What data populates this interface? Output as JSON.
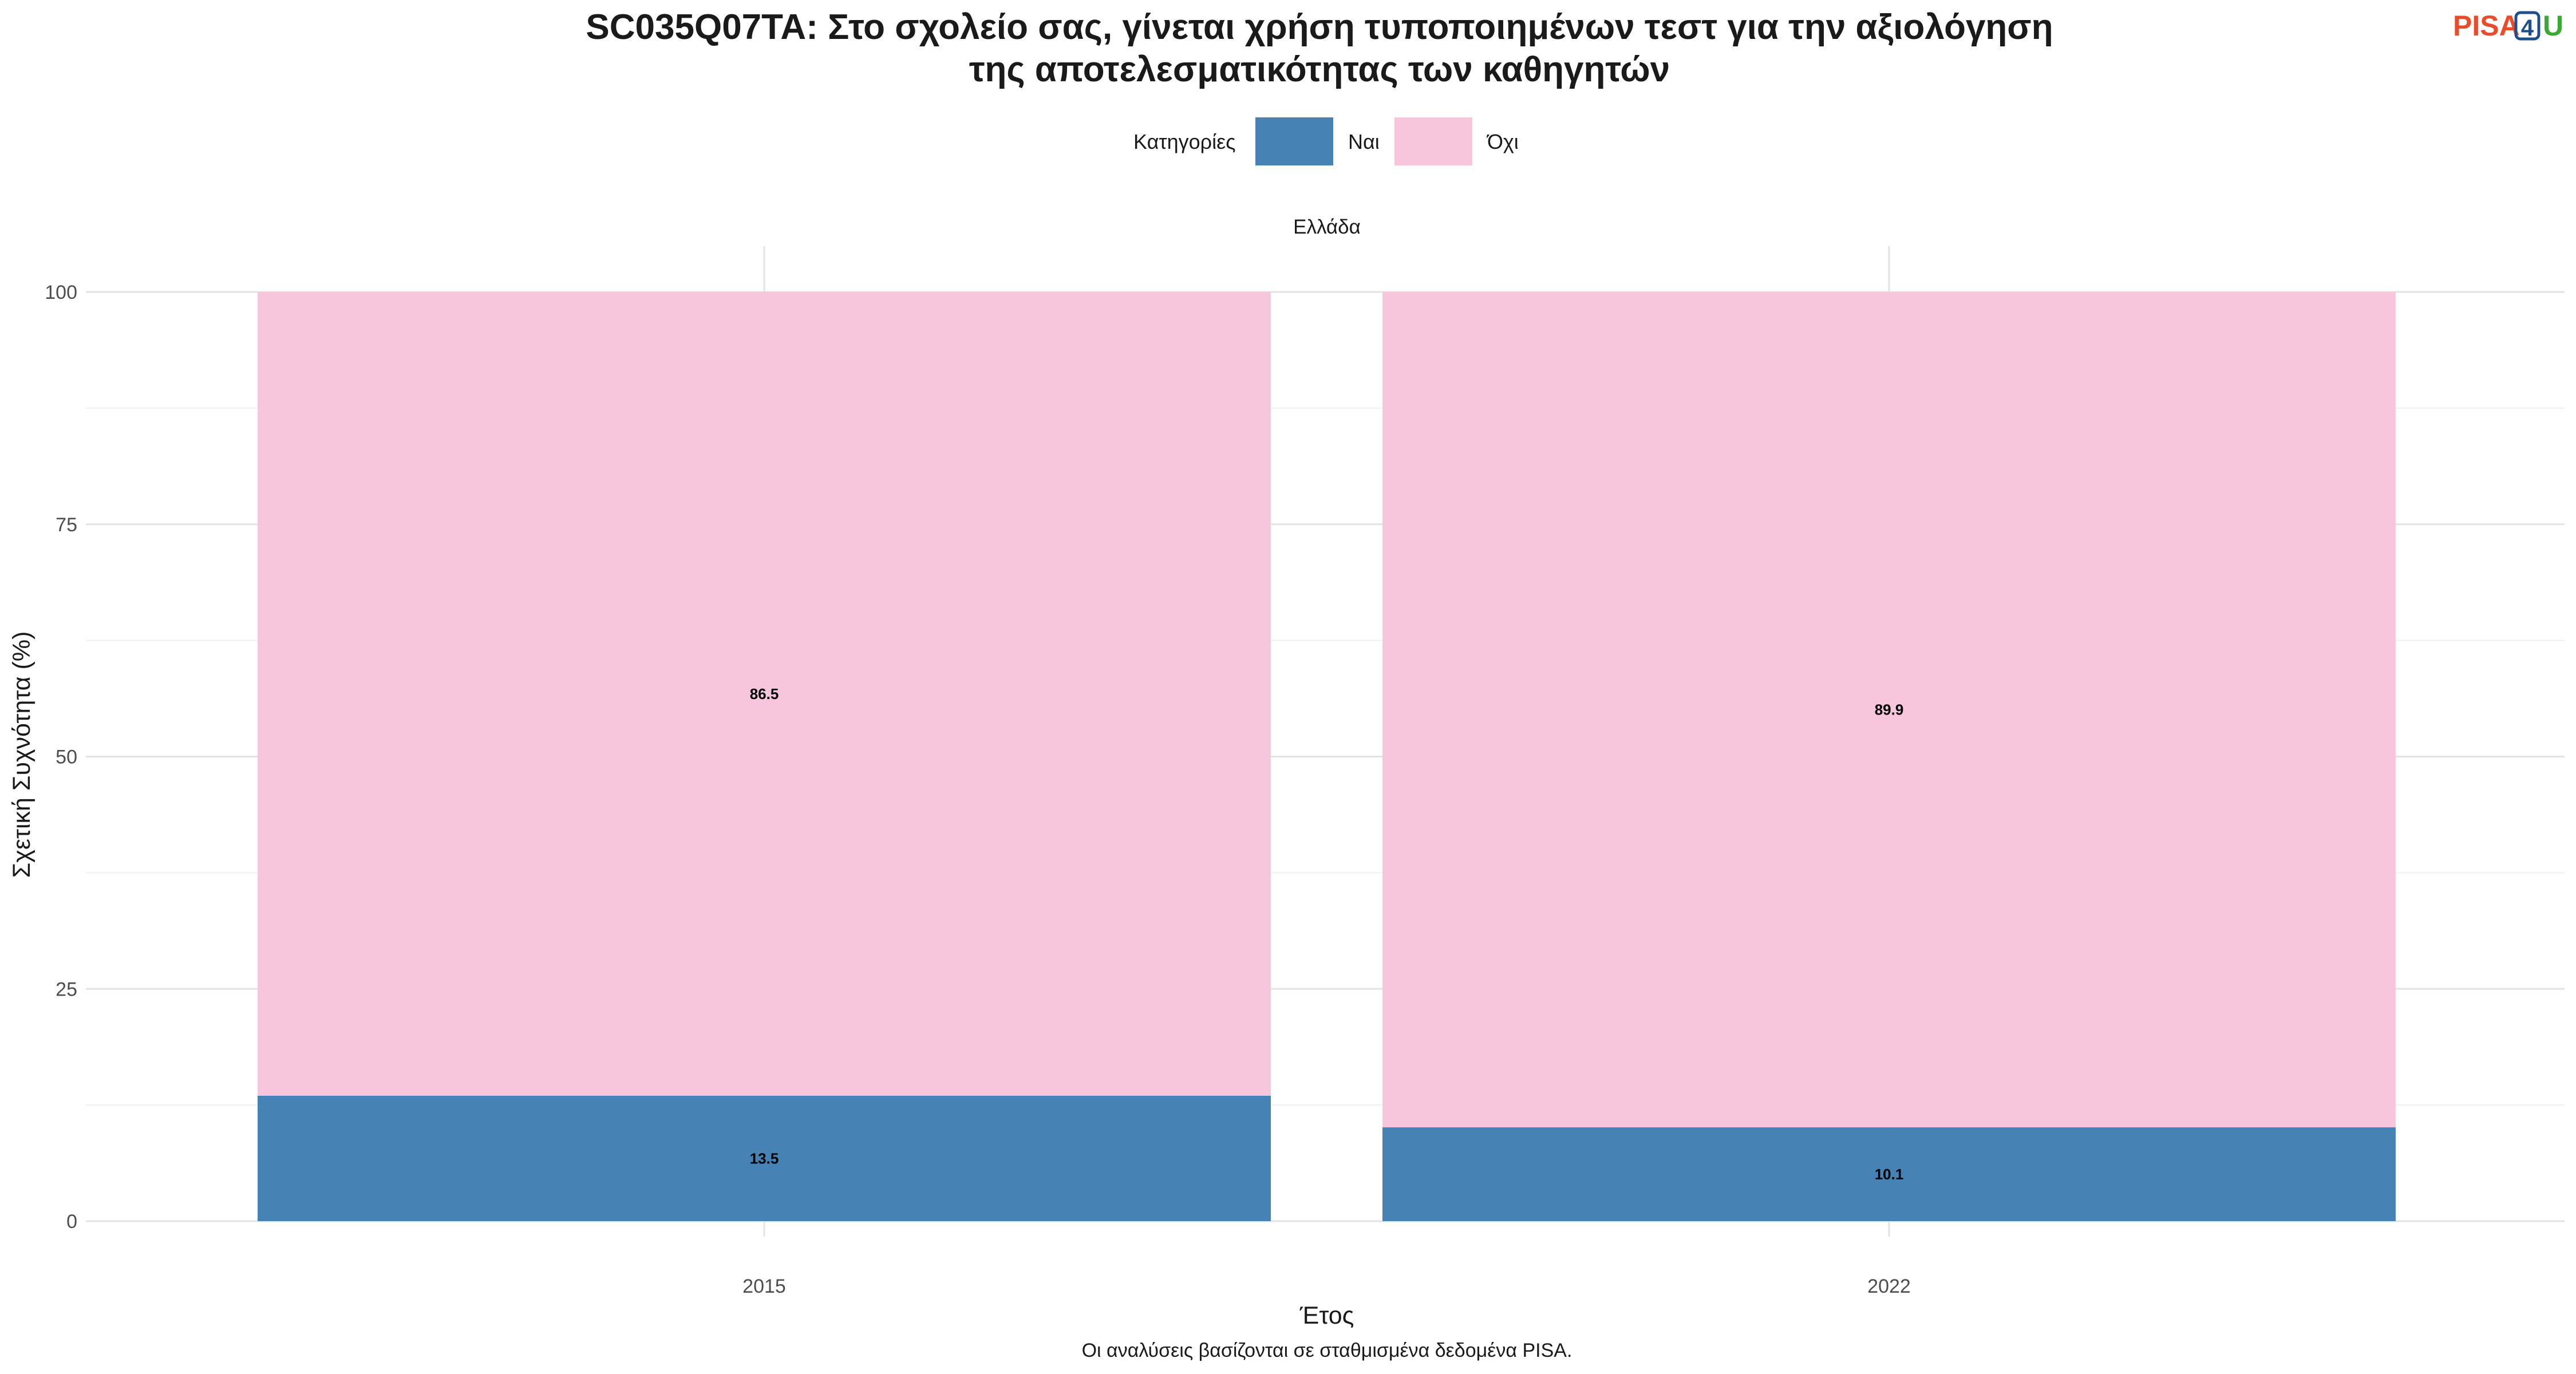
{
  "chart_data": {
    "type": "bar",
    "stacked": true,
    "title_line1": "SC035Q07TA: Στο σχολείο σας, γίνεται χρήση τυποποιημένων τεστ για την αξιολόγηση",
    "title_line2": "της αποτελεσματικότητας των καθηγητών",
    "legend_title": "Κατηγορίες",
    "legend_placement": "top",
    "facet": "Ελλάδα",
    "categories": [
      "2015",
      "2022"
    ],
    "series": [
      {
        "name": "Ναι",
        "values": [
          13.5,
          10.1
        ],
        "color": "#4682b4"
      },
      {
        "name": "Όχι",
        "values": [
          86.5,
          89.9
        ],
        "color": "#f7c6dc"
      }
    ],
    "xlabel": "Έτος",
    "ylabel": "Σχετική Συχνότητα (%)",
    "ylim": [
      0,
      100
    ],
    "yticks": [
      0,
      25,
      50,
      75,
      100
    ],
    "grid": true,
    "caption": "Οι αναλύσεις βασίζονται σε σταθμισμένα δεδομένα PISA."
  },
  "logo": {
    "text_pisa": "PISA",
    "text_4": "4",
    "text_u": "U",
    "color_pisa": "#e84c2b",
    "color_4": "#1f4e8c",
    "color_u": "#3aaa35"
  }
}
